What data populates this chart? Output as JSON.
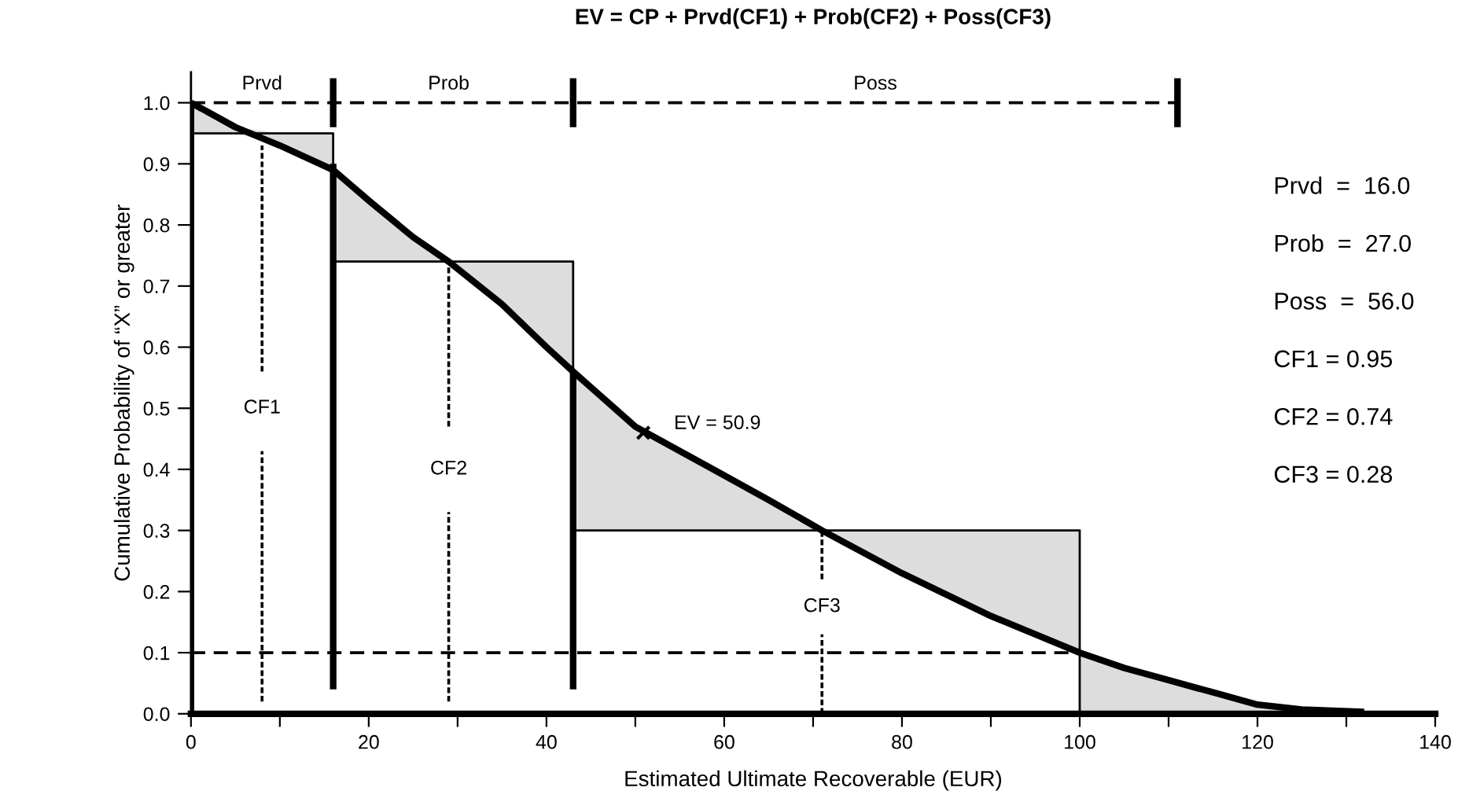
{
  "chart_data": {
    "type": "line",
    "title": "EV = CP + Prvd(CF1) + Prob(CF2) + Poss(CF3)",
    "xlabel": "Estimated Ultimate Recoverable (EUR)",
    "ylabel": "Cumulative Probability of “X” or greater",
    "xlim": [
      0,
      140
    ],
    "ylim": [
      0,
      1.05
    ],
    "xticks": [
      0,
      {
        "value": 10,
        "label": null
      },
      20,
      {
        "value": 30,
        "label": null
      },
      40,
      {
        "value": 50,
        "label": null
      },
      60,
      {
        "value": 70,
        "label": null
      },
      80,
      {
        "value": 90,
        "label": null
      },
      100,
      {
        "value": 110,
        "label": null
      },
      120,
      {
        "value": 130,
        "label": null
      },
      140
    ],
    "yticks": [
      {
        "value": 0,
        "label": "0.0"
      },
      0.1,
      0.2,
      0.3,
      0.4,
      0.5,
      0.6,
      0.7,
      0.8,
      0.9,
      {
        "value": 1,
        "label": "1.0"
      }
    ],
    "grid": false,
    "series": [
      {
        "color": "#000000",
        "line_style": "solid",
        "x": [
          0,
          5,
          10,
          16,
          16,
          20,
          25,
          29,
          35,
          40,
          43,
          43,
          50,
          55,
          60,
          65,
          71,
          80,
          90,
          100,
          100,
          105,
          110,
          115,
          120,
          125,
          132
        ],
        "values": [
          1.0,
          0.96,
          0.93,
          0.89,
          0.89,
          0.84,
          0.78,
          0.74,
          0.67,
          0.6,
          0.56,
          0.56,
          0.47,
          0.43,
          0.39,
          0.35,
          0.3,
          0.23,
          0.16,
          0.1,
          0.1,
          0.075,
          0.055,
          0.035,
          0.015,
          0.007,
          0.003
        ],
        "lower": [
          0.95,
          0.95,
          0.93,
          0.89,
          0.74,
          0.74,
          0.74,
          0.74,
          0.67,
          0.6,
          0.56,
          0.3,
          0.3,
          0.3,
          0.3,
          0.3,
          0.3,
          0.23,
          0.16,
          0.1,
          0,
          0,
          0,
          0,
          0,
          0,
          0
        ],
        "upper": [
          1.0,
          0.96,
          0.95,
          0.95,
          0.89,
          0.84,
          0.78,
          0.74,
          0.74,
          0.74,
          0.74,
          0.56,
          0.47,
          0.43,
          0.39,
          0.35,
          0.3,
          0.3,
          0.3,
          0.3,
          0.1,
          0.075,
          0.055,
          0.035,
          0.015,
          0.007,
          0.003
        ]
      },
      {
        "type": "step",
        "color": "#000000",
        "x": [
          0,
          16,
          16,
          43,
          43,
          100,
          100
        ],
        "values": [
          0.95,
          0.95,
          0.74,
          0.74,
          0.3,
          0.3,
          0
        ]
      },
      {
        "color": "#000000",
        "line_style": "solid",
        "x": [
          0,
          0
        ],
        "values": [
          0,
          1.0
        ]
      },
      {
        "color": "#000000",
        "line_style": "solid",
        "x": [
          16,
          16
        ],
        "values": [
          0.04,
          0.9
        ]
      },
      {
        "color": "#000000",
        "line_style": "solid",
        "x": [
          43,
          43
        ],
        "values": [
          0.04,
          0.56
        ]
      },
      {
        "color": "#000000",
        "line_style": "dotted",
        "x": [
          8,
          8
        ],
        "values": [
          0.02,
          0.43
        ]
      },
      {
        "color": "#000000",
        "line_style": "dotted",
        "x": [
          8,
          8
        ],
        "values": [
          0.56,
          0.93
        ]
      },
      {
        "color": "#000000",
        "line_style": "dotted",
        "x": [
          29,
          29
        ],
        "values": [
          0.02,
          0.33
        ]
      },
      {
        "color": "#000000",
        "line_style": "dotted",
        "x": [
          29,
          29
        ],
        "values": [
          0.47,
          0.74
        ]
      },
      {
        "color": "#000000",
        "line_style": "dotted",
        "x": [
          71,
          71
        ],
        "values": [
          0.0,
          0.13
        ]
      },
      {
        "color": "#000000",
        "line_style": "dotted",
        "x": [
          71,
          71
        ],
        "values": [
          0.22,
          0.3
        ]
      },
      {
        "color": "#000000",
        "line_style": "dashed",
        "x": [
          0,
          100
        ],
        "values": [
          0.1,
          0.1
        ]
      },
      {
        "color": "#000000",
        "line_style": "dashed",
        "x": [
          0,
          111
        ],
        "values": [
          1.0,
          1.0
        ]
      },
      {
        "color": "#000000",
        "line_style": "solid",
        "x": [
          16,
          16
        ],
        "values": [
          0.96,
          1.04
        ]
      },
      {
        "color": "#000000",
        "line_style": "solid",
        "x": [
          43,
          43
        ],
        "values": [
          0.96,
          1.04
        ]
      },
      {
        "color": "#000000",
        "line_style": "solid",
        "x": [
          111,
          111
        ],
        "values": [
          0.96,
          1.04
        ]
      },
      {
        "type": "scatter",
        "marker": "cross",
        "color": "#000000",
        "x": [
          50.9
        ],
        "values": [
          0.46
        ]
      }
    ],
    "annotations": [
      "Prvd",
      "Prob",
      "Poss",
      "CF1",
      "CF2",
      "CF3",
      {
        "text": "EV = 50.9",
        "x": 50.9,
        "y": 0.46
      },
      "Prvd  =  16.0",
      "Prob  =  27.0",
      "Poss  =  56.0",
      "CF1 = 0.95",
      "CF2 = 0.74",
      "CF3 = 0.28"
    ]
  }
}
